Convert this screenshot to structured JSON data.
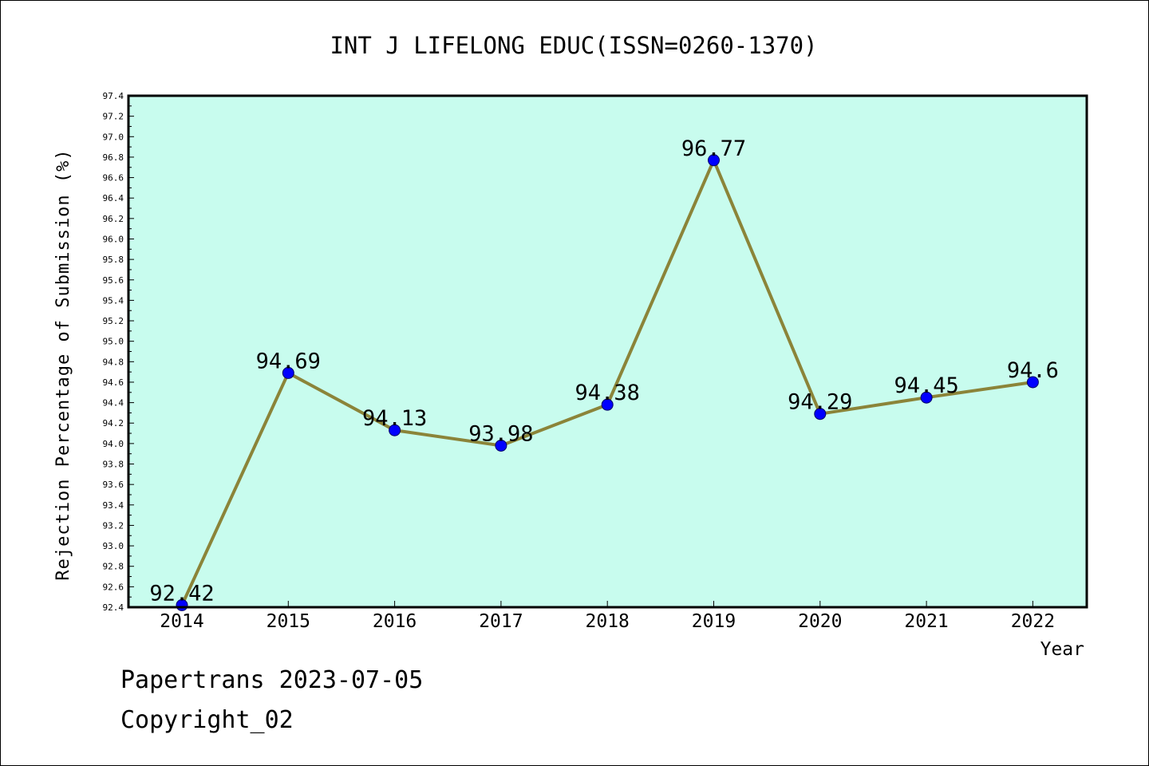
{
  "chart_data": {
    "type": "line",
    "title": "INT J LIFELONG EDUC(ISSN=0260-1370)",
    "xlabel": "Year",
    "ylabel": "Rejection Percentage of Submission (%)",
    "categories": [
      "2014",
      "2015",
      "2016",
      "2017",
      "2018",
      "2019",
      "2020",
      "2021",
      "2022"
    ],
    "series": [
      {
        "values": [
          92.42,
          94.69,
          94.13,
          93.98,
          94.38,
          96.77,
          94.29,
          94.45,
          94.6
        ],
        "labels": [
          "92.42",
          "94.69",
          "94.13",
          "93.98",
          "94.38",
          "96.77",
          "94.29",
          "94.45",
          "94.6"
        ]
      }
    ],
    "ylim": [
      92.4,
      97.4
    ],
    "yticks": [
      "92.4",
      "92.6",
      "92.8",
      "93.0",
      "93.2",
      "93.4",
      "93.6",
      "93.8",
      "94.0",
      "94.2",
      "94.4",
      "94.6",
      "94.8",
      "95.0",
      "95.2",
      "95.4",
      "95.6",
      "95.8",
      "96.0",
      "96.2",
      "96.4",
      "96.6",
      "96.8",
      "97.0",
      "97.2",
      "97.4"
    ],
    "grid": false,
    "colors": {
      "plot_background": "#c8fcee",
      "line": "#8b8439",
      "marker": "#0000ff"
    }
  },
  "footer": {
    "line1": "Papertrans 2023-07-05",
    "line2": "Copyright_02"
  }
}
